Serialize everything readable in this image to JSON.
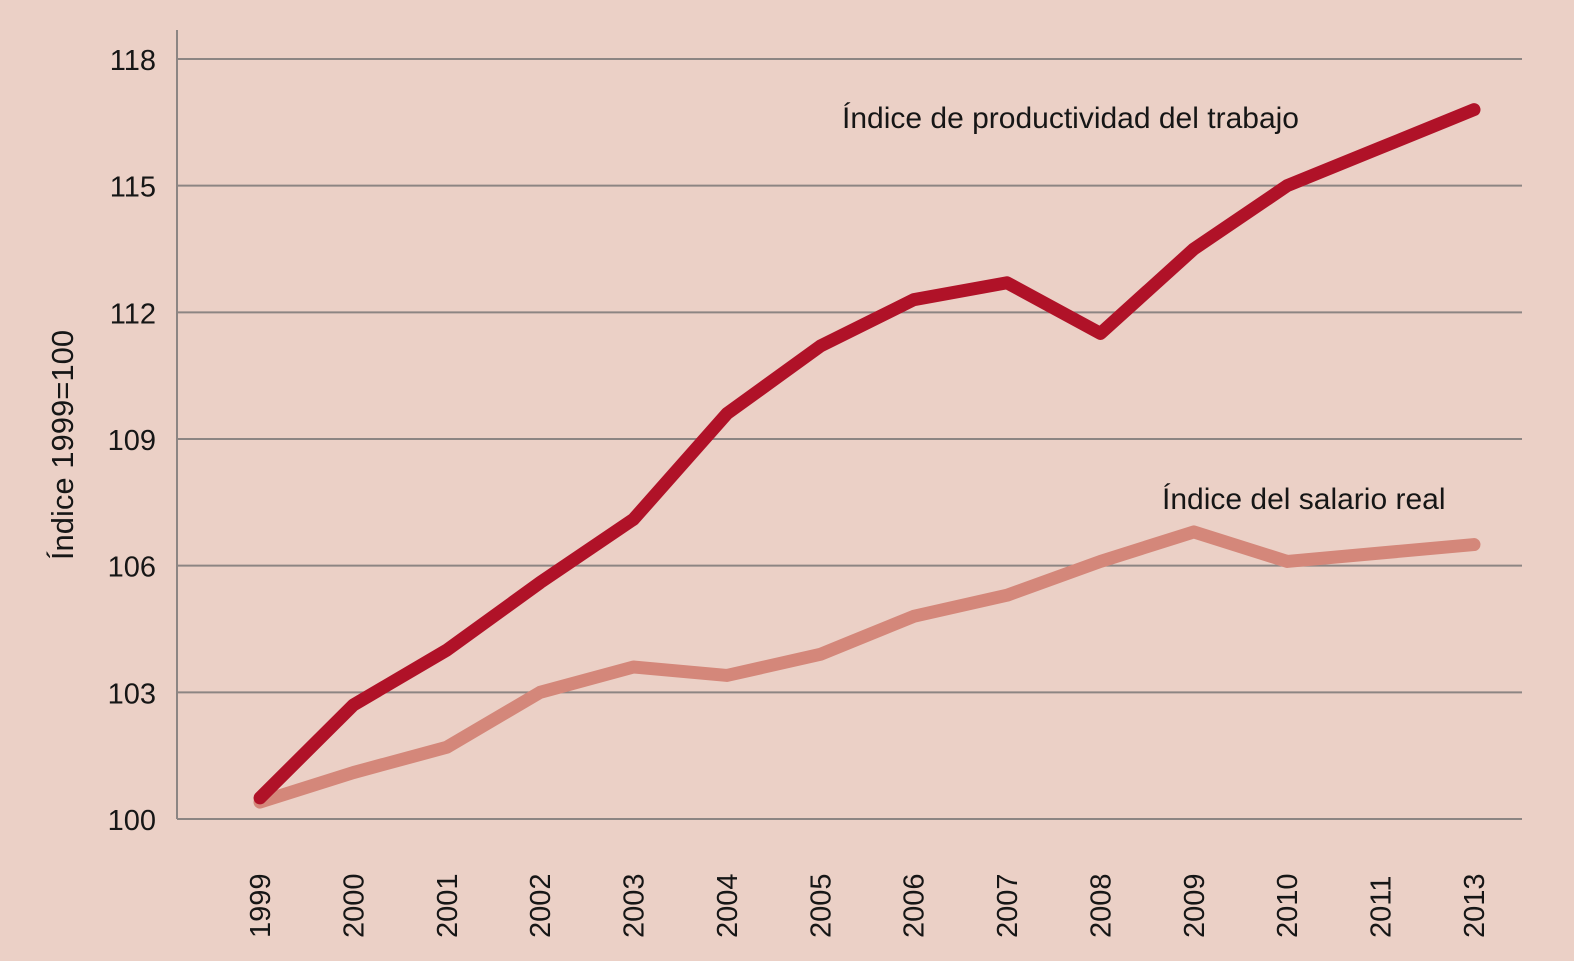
{
  "chart_data": {
    "type": "line",
    "title": "",
    "xlabel": "",
    "ylabel": "Índice 1999=100",
    "ylim": [
      100,
      118
    ],
    "yticks": [
      100,
      103,
      106,
      109,
      112,
      115,
      118
    ],
    "ytick_labels": [
      "100",
      "103",
      "106",
      "109",
      "112",
      "115",
      "118"
    ],
    "grid": true,
    "categories": [
      "1999",
      "2000",
      "2001",
      "2002",
      "2003",
      "2004",
      "2005",
      "2006",
      "2007",
      "2008",
      "2009",
      "2010",
      "2011",
      "2013"
    ],
    "series": [
      {
        "name": "Índice de productividad del trabajo",
        "color": "#b01228",
        "values": [
          100.5,
          102.7,
          104.0,
          105.6,
          107.1,
          109.6,
          111.2,
          112.3,
          112.7,
          111.5,
          113.5,
          115.0,
          115.9,
          116.8
        ]
      },
      {
        "name": "Índice del salario real",
        "color": "#d4877a",
        "values": [
          100.4,
          101.1,
          101.7,
          103.0,
          103.6,
          103.4,
          103.9,
          104.8,
          105.3,
          106.1,
          106.8,
          106.1,
          106.3,
          106.5
        ]
      }
    ],
    "legend": "inline-labels",
    "background_color": "#ebd0c6",
    "grid_color": "#8c8583"
  }
}
